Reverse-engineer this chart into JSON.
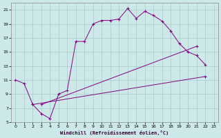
{
  "xlabel": "Windchill (Refroidissement éolien,°C)",
  "bg_color": "#cce8e8",
  "line_color": "#800080",
  "grid_color": "#aacccc",
  "xlim": [
    -0.5,
    23.5
  ],
  "ylim": [
    5,
    22
  ],
  "yticks": [
    5,
    7,
    9,
    11,
    13,
    15,
    17,
    19,
    21
  ],
  "xticks": [
    0,
    1,
    2,
    3,
    4,
    5,
    6,
    7,
    8,
    9,
    10,
    11,
    12,
    13,
    14,
    15,
    16,
    17,
    18,
    19,
    20,
    21,
    22,
    23
  ],
  "series1_x": [
    0,
    1,
    2,
    3,
    4,
    5,
    6,
    7,
    8,
    9,
    10,
    11,
    12,
    13,
    14,
    15,
    16,
    17,
    18,
    19,
    20,
    21,
    22
  ],
  "series1_y": [
    11.0,
    10.5,
    7.5,
    6.2,
    5.5,
    9.0,
    9.5,
    16.5,
    16.5,
    19.0,
    19.5,
    19.5,
    19.7,
    21.2,
    19.8,
    20.8,
    20.2,
    19.4,
    18.0,
    16.2,
    15.0,
    14.5,
    13.2
  ],
  "series2_x": [
    2,
    22
  ],
  "series2_y": [
    7.5,
    11.5
  ],
  "series3_x": [
    3,
    21
  ],
  "series3_y": [
    7.5,
    15.8
  ]
}
